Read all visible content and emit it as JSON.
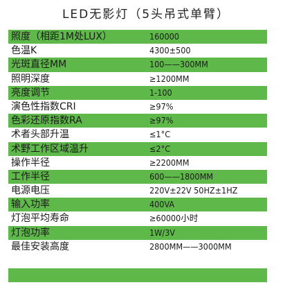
{
  "title": "LED无影灯（5头吊式单臂）",
  "rows": [
    {
      "label": "照度（相距1M处LUX）",
      "value": "160000",
      "green": true
    },
    {
      "label": "色温K",
      "value": "4300±500",
      "green": false
    },
    {
      "label": "光斑直径MM",
      "value": "100——300MM",
      "green": true
    },
    {
      "label": "照明深度",
      "value": "≥1200MM",
      "green": false
    },
    {
      "label": "亮度调节",
      "value": "1-100",
      "green": true
    },
    {
      "label": "演色性指数CRI",
      "value": "≥97%",
      "green": false
    },
    {
      "label": "色彩还原指数RA",
      "value": "≥97%",
      "green": true
    },
    {
      "label": "术者头部升温",
      "value": "≤1°C",
      "green": false
    },
    {
      "label": "术野工作区域温升",
      "value": "≤2°C",
      "green": true
    },
    {
      "label": "操作半径",
      "value": "≥2200MM",
      "green": false
    },
    {
      "label": "工作半径",
      "value": "600——1800MM",
      "green": true
    },
    {
      "label": "电源电压",
      "value": "220V±22V   50HZ±1HZ",
      "green": false
    },
    {
      "label": "输入功率",
      "value": "400VA",
      "green": true
    },
    {
      "label": "灯泡平均寿命",
      "value": "≥60000小时",
      "green": false
    },
    {
      "label": "灯泡功率",
      "value": "1W/3V",
      "green": true
    },
    {
      "label": "最佳安装高度",
      "value": "2800MM——3000MM",
      "green": false
    }
  ],
  "colors": {
    "row_green": "#5fb94a",
    "row_white": "#ffffff"
  }
}
